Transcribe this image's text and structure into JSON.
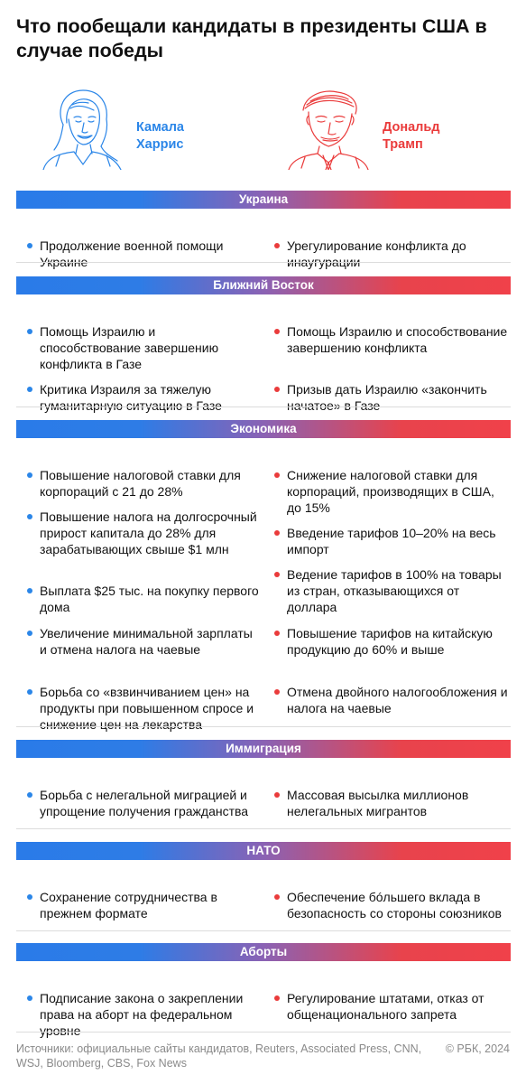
{
  "title": "Что пообещали кандидаты в президенты США в случае победы",
  "candidates": {
    "harris": {
      "first_name": "Камала",
      "last_name": "Харрис"
    },
    "trump": {
      "first_name": "Дональд",
      "last_name": "Трамп"
    }
  },
  "colors": {
    "harris": "#2b86e8",
    "trump": "#ea3b3b"
  },
  "sections": [
    {
      "title": "Украина",
      "harris": [
        "Продолжение военной помощи Украине"
      ],
      "trump": [
        "Урегулирование конфликта до инаугурации"
      ]
    },
    {
      "title": "Ближний Восток",
      "harris": [
        "Помощь Израилю и способствование завершению конфликта в Газе",
        "Критика Израиля за тяжелую гуманитарную ситуацию в Газе"
      ],
      "trump": [
        "Помощь Израилю и способствование завершению конфликта",
        "Призыв дать Израилю «закончить начатое» в Газе"
      ]
    },
    {
      "title": "Экономика",
      "harris": [
        "Повышение налоговой ставки для корпораций с 21 до 28%",
        "Повышение налога на долгосрочный прирост капитала до 28% для зарабатывающих свыше $1 млн",
        "Выплата $25 тыс. на покупку первого дома",
        "Увеличение минимальной зарплаты и отмена налога на чаевые",
        "Борьба со «взвинчиванием цен» на продукты при повышенном спросе и снижение цен на лекарства"
      ],
      "trump": [
        "Снижение налоговой ставки для корпораций, производящих в США, до 15%",
        "Введение тарифов 10–20% на весь импорт",
        "Ведение тарифов в 100% на товары из стран, отказывающихся от доллара",
        "Повышение тарифов на китайскую продукцию до 60% и выше",
        "Отмена двойного налогообложения и налога на чаевые"
      ]
    },
    {
      "title": "Иммиграция",
      "harris": [
        "Борьба с нелегальной миграцией и упрощение получения гражданства"
      ],
      "trump": [
        "Массовая высылка миллионов нелегальных мигрантов"
      ]
    },
    {
      "title": "НАТО",
      "harris": [
        "Сохранение сотрудничества в прежнем формате"
      ],
      "trump": [
        "Обеспечение бóльшего вклада в безопасность со стороны союзников"
      ]
    },
    {
      "title": "Аборты",
      "harris": [
        "Подписание закона о закреплении права на аборт на федеральном уровне"
      ],
      "trump": [
        "Регулирование штатами, отказ от общенационального запрета"
      ]
    }
  ],
  "footer": {
    "sources": "Источники: официальные сайты кандидатов, Reuters, Associated Press, CNN, WSJ, Bloomberg, CBS, Fox News",
    "copyright": "© РБК, 2024"
  }
}
